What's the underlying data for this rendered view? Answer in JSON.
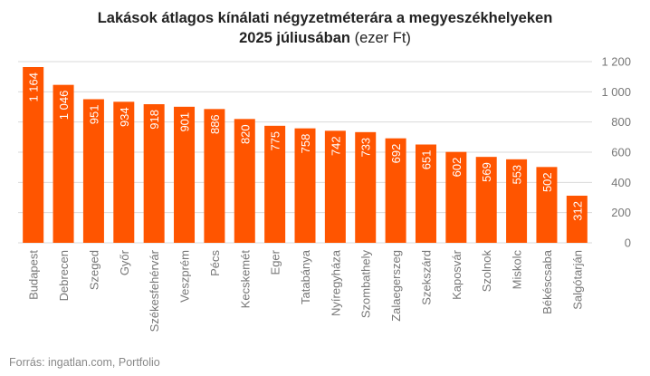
{
  "title": {
    "line1": "Lakások átlagos kínálati négyzetméterára a megyeszékhelyeken",
    "line2_bold": "2025 júliusában",
    "line2_normal": " (ezer Ft)"
  },
  "source": "Forrás: ingatlan.com, Portfolio",
  "colors": {
    "bar": "#ff5500",
    "grid": "#d9d9d9",
    "axis_text": "#777777",
    "label_text": "#ffffff"
  },
  "chart_data": {
    "type": "bar",
    "categories": [
      "Budapest",
      "Debrecen",
      "Szeged",
      "Győr",
      "Székesfehérvár",
      "Veszprém",
      "Pécs",
      "Kecskemét",
      "Eger",
      "Tatabánya",
      "Nyíregyháza",
      "Szombathely",
      "Zalaegerszeg",
      "Szekszárd",
      "Kaposvár",
      "Szolnok",
      "Miskolc",
      "Békéscsaba",
      "Salgótarján"
    ],
    "values": [
      1164,
      1046,
      951,
      934,
      918,
      901,
      886,
      820,
      775,
      758,
      742,
      733,
      692,
      651,
      602,
      569,
      553,
      502,
      312
    ],
    "value_labels": [
      "1 164",
      "1 046",
      "951",
      "934",
      "918",
      "901",
      "886",
      "820",
      "775",
      "758",
      "742",
      "733",
      "692",
      "651",
      "602",
      "569",
      "553",
      "502",
      "312"
    ],
    "ylim": [
      0,
      1200
    ],
    "yticks": [
      0,
      200,
      400,
      600,
      800,
      1000,
      1200
    ],
    "ytick_labels": [
      "0",
      "200",
      "400",
      "600",
      "800",
      "1 000",
      "1 200"
    ],
    "y_axis_side": "right",
    "grid": true,
    "legend": false
  }
}
